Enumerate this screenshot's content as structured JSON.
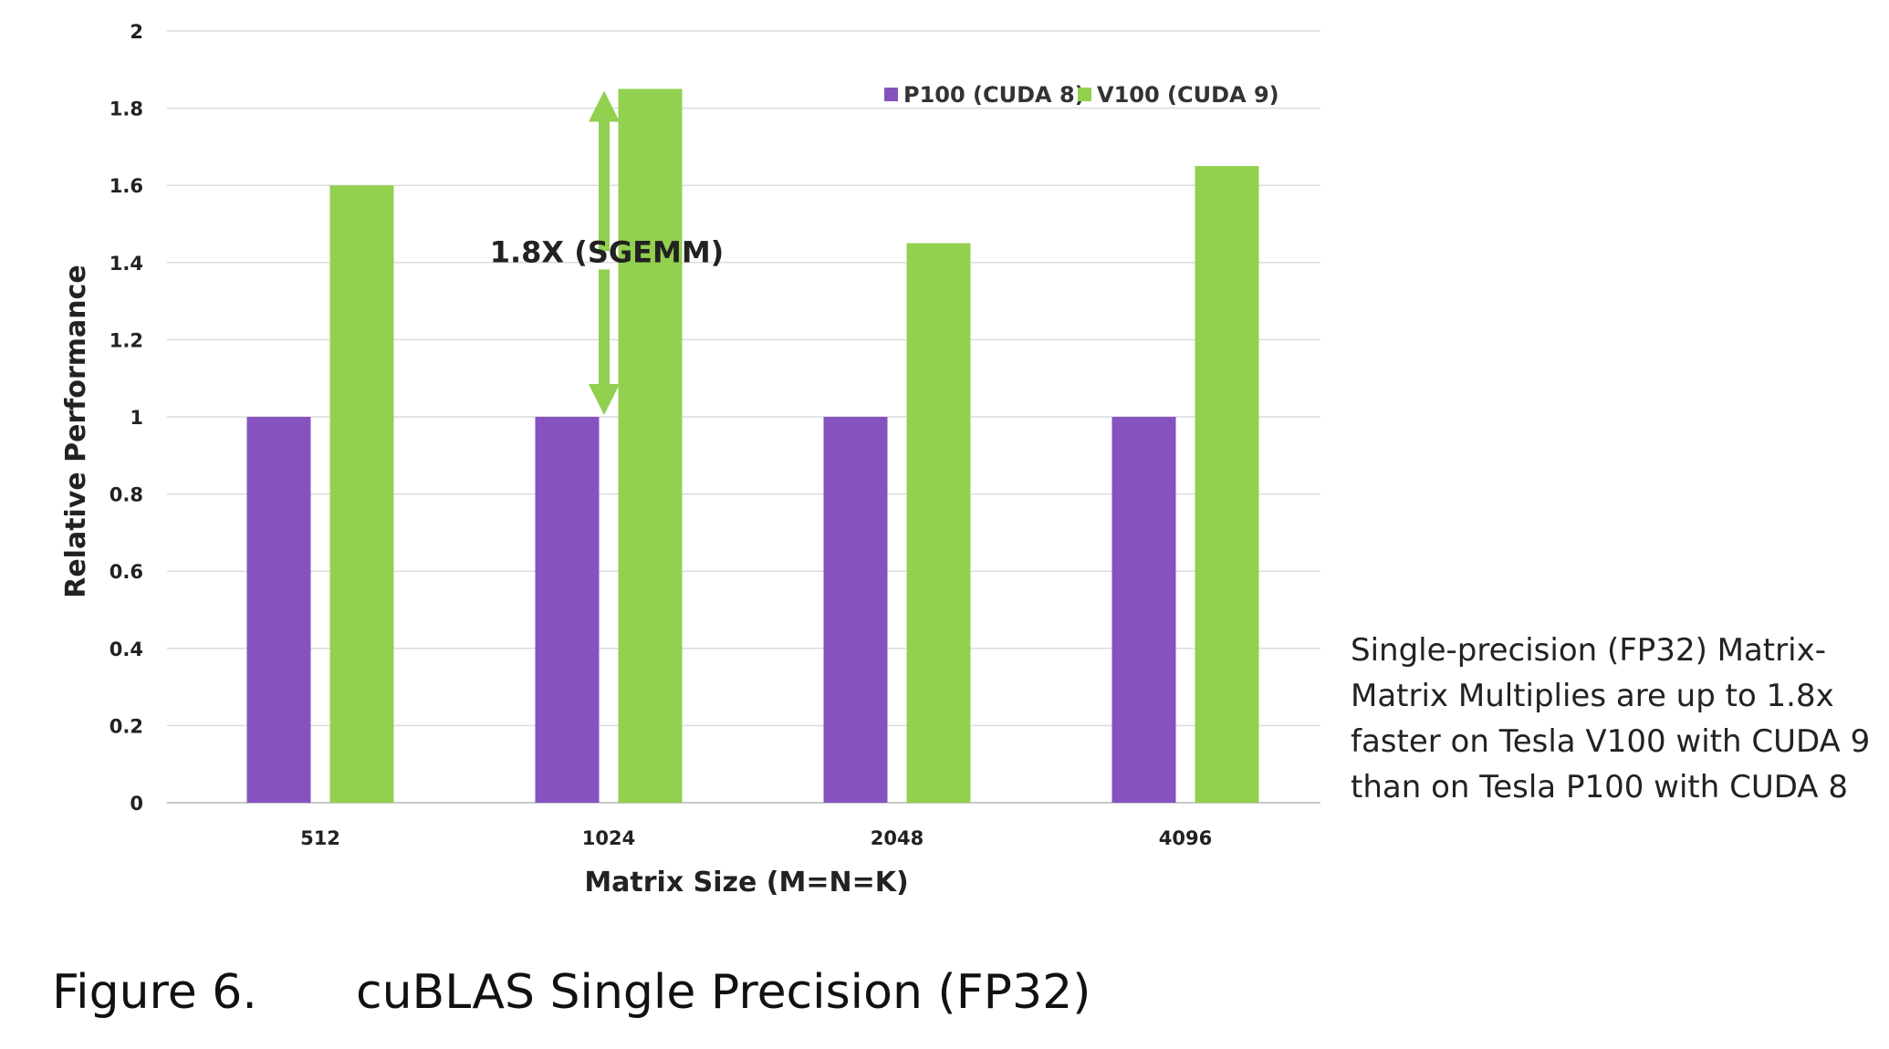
{
  "chart_data": {
    "type": "bar",
    "categories": [
      "512",
      "1024",
      "2048",
      "4096"
    ],
    "series": [
      {
        "name": "P100 (CUDA 8)",
        "color": "#8652C0",
        "values": [
          1,
          1,
          1,
          1
        ]
      },
      {
        "name": "V100 (CUDA 9)",
        "color": "#92D050",
        "values": [
          1.6,
          1.85,
          1.45,
          1.65
        ]
      }
    ],
    "ylabel": "Relative Performance",
    "xlabel": "Matrix Size (M=N=K)",
    "ylim": [
      0,
      2
    ],
    "yticks": [
      "0",
      "0.2",
      "0.4",
      "0.6",
      "0.8",
      "1",
      "1.2",
      "1.4",
      "1.6",
      "1.8",
      "2"
    ],
    "grid": true,
    "legend_position": "top-right",
    "annotation": {
      "text": "1.8X (SGEMM)",
      "from": 1,
      "to": 1.85,
      "category": "1024",
      "color": "#92D050"
    }
  },
  "side_note": "Single-precision (FP32) Matrix-Matrix Multiplies are up to 1.8x faster on Tesla V100 with CUDA 9 than on Tesla P100 with CUDA 8",
  "caption": {
    "number": "Figure 6.",
    "title": "cuBLAS Single Precision (FP32)"
  }
}
